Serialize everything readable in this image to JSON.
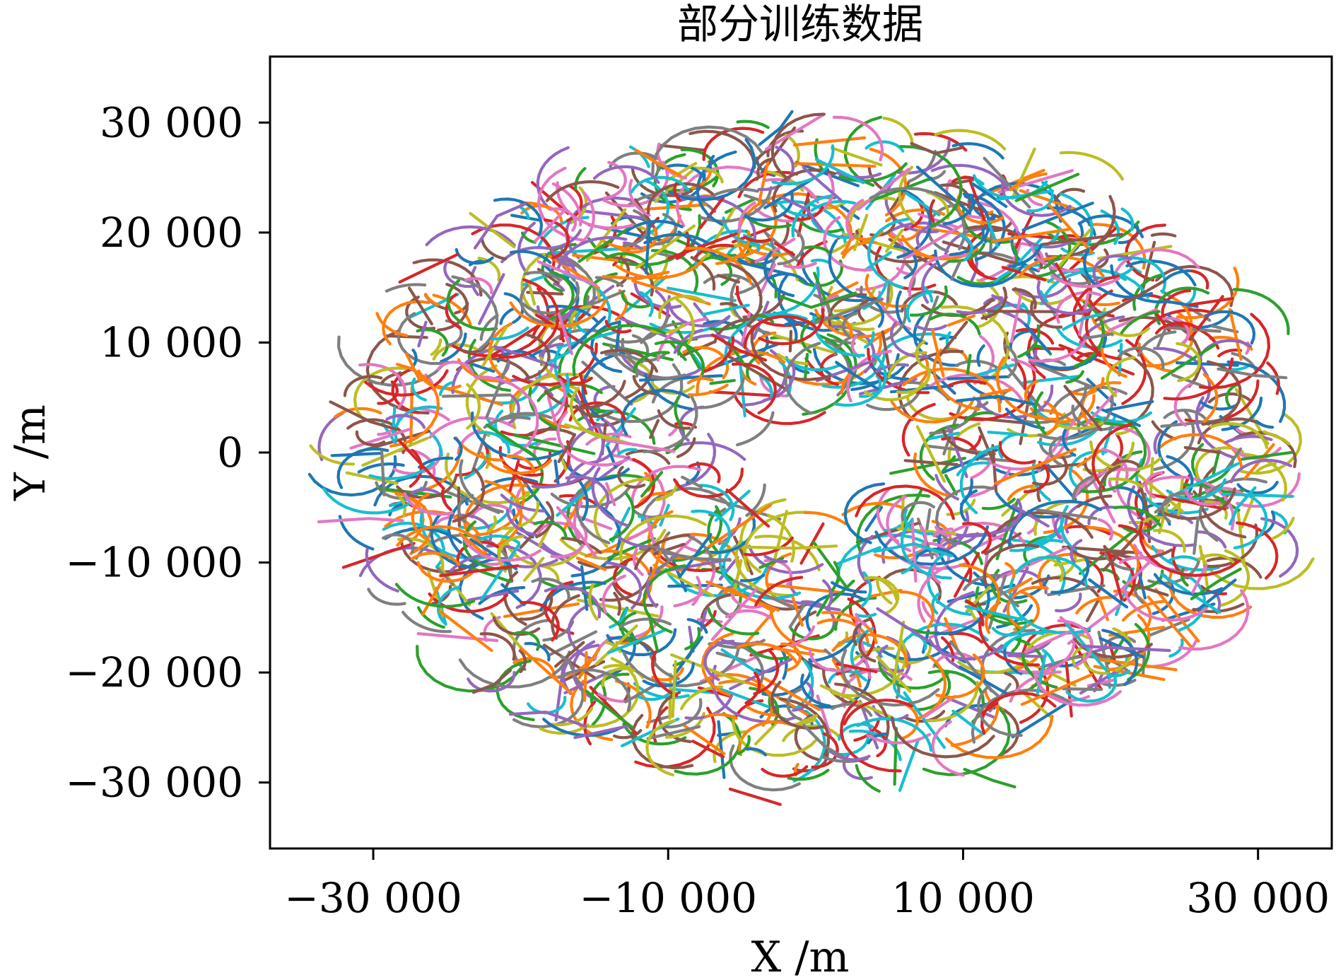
{
  "chart_data": {
    "type": "line",
    "title": "部分训练数据",
    "xlabel": "X /m",
    "ylabel": "Y /m",
    "xlim": [
      -37000,
      35000
    ],
    "ylim": [
      -36000,
      36000
    ],
    "xticks": [
      -30000,
      -10000,
      10000,
      30000
    ],
    "xtick_labels": [
      "−30 000",
      "−10 000",
      "10 000",
      "30 000"
    ],
    "yticks": [
      30000,
      20000,
      10000,
      0,
      -10000,
      -20000,
      -30000
    ],
    "ytick_labels": [
      "30 000",
      "20 000",
      "10 000",
      "0",
      "−10 000",
      "−20 000",
      "−30 000"
    ],
    "grid": false,
    "legend": false,
    "colors": [
      "#1f77b4",
      "#ff7f0e",
      "#2ca02c",
      "#d62728",
      "#9467bd",
      "#8c564b",
      "#e377c2",
      "#7f7f7f",
      "#bcbd22",
      "#17becf"
    ],
    "distribution": {
      "shape": "annulus",
      "center": [
        0,
        0
      ],
      "inner_radius": 7000,
      "outer_radius": 30000
    },
    "series": [
      {
        "x": [
          -1600,
          -2400,
          -3800
        ],
        "y": [
          31000,
          29500,
          28000
        ]
      },
      {
        "x": [
          -9200,
          -10700,
          -12200
        ],
        "y": [
          25200,
          26300,
          27500
        ]
      },
      {
        "x": [
          17800,
          15700,
          13600
        ],
        "y": [
          25300,
          24100,
          22900
        ]
      },
      {
        "x": [
          -28200,
          -26500,
          -24300
        ],
        "y": [
          15500,
          16600,
          18000
        ]
      },
      {
        "x": [
          -23100,
          -21600,
          -19700
        ],
        "y": [
          18600,
          21500,
          22600
        ]
      },
      {
        "x": [
          -32900,
          -30200,
          -28400
        ],
        "y": [
          4600,
          2800,
          2100
        ]
      },
      {
        "x": [
          -33700,
          -30300,
          -28000
        ],
        "y": [
          -6300,
          -6000,
          -6200
        ]
      },
      {
        "x": [
          27300,
          29800,
          31900
        ],
        "y": [
          7600,
          7000,
          6800
        ]
      },
      {
        "x": [
          30400,
          31700,
          32100
        ],
        "y": [
          1900,
          1200,
          800
        ]
      },
      {
        "x": [
          29800,
          28600,
          28100
        ],
        "y": [
          -3200,
          -5000,
          -6500
        ]
      },
      {
        "x": [
          19300,
          20900,
          22200
        ],
        "y": [
          -16900,
          -17800,
          -18600
        ]
      },
      {
        "x": [
          14000,
          16300,
          18700
        ],
        "y": [
          -22900,
          -21600,
          -20200
        ]
      },
      {
        "x": [
          10100,
          12000,
          13500
        ],
        "y": [
          -28800,
          -29800,
          -30400
        ]
      },
      {
        "x": [
          -5800,
          -3600,
          -2400
        ],
        "y": [
          -30600,
          -31500,
          -32000
        ]
      },
      {
        "x": [
          -20700,
          -18300,
          -15600
        ],
        "y": [
          -23800,
          -23600,
          -24900
        ]
      },
      {
        "x": [
          -23200,
          -21800,
          -20700
        ],
        "y": [
          -21800,
          -21100,
          -19800
        ]
      },
      {
        "x": [
          -14200,
          -12200,
          -9600
        ],
        "y": [
          1100,
          700,
          100
        ]
      },
      {
        "x": [
          -11200,
          -8700,
          -5800
        ],
        "y": [
          -8500,
          -9600,
          -9800
        ]
      },
      {
        "x": [
          -4600,
          -1400,
          1400
        ],
        "y": [
          -8600,
          -8700,
          -8500
        ]
      },
      {
        "x": [
          4000,
          6700,
          9200
        ],
        "y": [
          -9000,
          -8300,
          -9400
        ]
      },
      {
        "x": [
          9600,
          12400,
          14800
        ],
        "y": [
          4700,
          5100,
          4400
        ]
      },
      {
        "x": [
          12200,
          15000,
          17600
        ],
        "y": [
          -2800,
          -1200,
          300
        ]
      },
      {
        "x": [
          -2400,
          -300,
          2700
        ],
        "y": [
          14200,
          13200,
          14500
        ]
      },
      {
        "x": [
          -7000,
          -5200,
          -3400
        ],
        "y": [
          10700,
          9300,
          8400
        ]
      },
      {
        "x": [
          -2300,
          -600,
          400
        ],
        "y": [
          23200,
          22100,
          20300
        ]
      },
      {
        "x": [
          6500,
          8100,
          9900
        ],
        "y": [
          28100,
          27200,
          27700
        ]
      },
      {
        "x": [
          -17500,
          -16100,
          -14900
        ],
        "y": [
          -5000,
          -7200,
          -9500
        ]
      },
      {
        "x": [
          -800,
          600,
          1900
        ],
        "y": [
          -24800,
          -26700,
          -27700
        ]
      },
      {
        "x": [
          4200,
          5300,
          6400
        ],
        "y": [
          -18600,
          -20200,
          -21700
        ]
      },
      {
        "x": [
          16800,
          18200,
          20000
        ],
        "y": [
          11200,
          12200,
          12800
        ]
      },
      {
        "x": [
          1400,
          2700,
          4200
        ],
        "y": [
          8200,
          7000,
          5800
        ]
      },
      {
        "x": [
          -14400,
          -12000,
          -10000
        ],
        "y": [
          16000,
          15800,
          16400
        ]
      },
      {
        "x": [
          25500,
          27300,
          28800
        ],
        "y": [
          -13300,
          -11700,
          -10600
        ]
      }
    ],
    "segments": [
      {
        "x": [
          -25400,
          -20200
        ],
        "y": [
          -11200,
          -10300
        ]
      },
      {
        "x": [
          18000,
          24000
        ],
        "y": [
          -17600,
          -18000
        ]
      },
      {
        "x": [
          23500,
          19000
        ],
        "y": [
          15500,
          12000
        ]
      },
      {
        "x": [
          -4000,
          -7000
        ],
        "y": [
          -12400,
          -17000
        ]
      },
      {
        "x": [
          15000,
          19000
        ],
        "y": [
          -5200,
          -6000
        ]
      },
      {
        "x": [
          -9500,
          -9700
        ],
        "y": [
          -19000,
          -24000
        ]
      },
      {
        "x": [
          10200,
          14000
        ],
        "y": [
          -14000,
          -15200
        ]
      },
      {
        "x": [
          -16500,
          -14300
        ],
        "y": [
          9500,
          12300
        ]
      },
      {
        "x": [
          12000,
          17200
        ],
        "y": [
          19200,
          20300
        ]
      },
      {
        "x": [
          -22300,
          -19000
        ],
        "y": [
          2500,
          -400
        ]
      },
      {
        "x": [
          -6000,
          -3200
        ],
        "y": [
          -3400,
          -6700
        ]
      },
      {
        "x": [
          4200,
          7600
        ],
        "y": [
          -14200,
          -17100
        ]
      }
    ]
  }
}
